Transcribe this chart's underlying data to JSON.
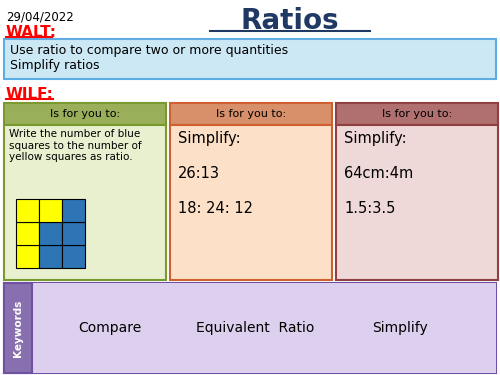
{
  "title": "Ratios",
  "date": "29/04/2022",
  "walt_label": "WALT:",
  "walt_text": "Use ratio to compare two or more quantities\nSimplify ratios",
  "wilf_label": "WILF:",
  "box1_header": "Is for you to:",
  "box1_text": "Write the number of blue\nsquares to the number of\nyellow squares as ratio.",
  "box2_text": "Simplify:\n\n26:13\n\n18: 24: 12",
  "box3_text": "Simplify:\n\n64cm:4m\n\n1.5:3.5",
  "box_header": "Is for you to:",
  "keywords": [
    "Compare",
    "Equivalent  Ratio",
    "Simplify"
  ],
  "bg_color": "#ffffff",
  "title_color": "#1f3864",
  "walt_color": "#ff0000",
  "wilf_color": "#ff0000",
  "walt_bg": "#cce8f4",
  "walt_border": "#5dade2",
  "box1_header_bg": "#9aaf5a",
  "box1_body_bg": "#e8f0d0",
  "box1_border": "#7a9a30",
  "box2_header_bg": "#d8906a",
  "box2_body_bg": "#fce0c8",
  "box2_border": "#d06030",
  "box3_header_bg": "#b07070",
  "box3_body_bg": "#eed8d8",
  "box3_border": "#904040",
  "keywords_bg": "#ddd0ee",
  "keywords_tab_bg": "#8870b0",
  "keywords_border": "#7050a0",
  "yellow_color": "#ffff00",
  "blue_color": "#2e75b6",
  "kw_text_color": "#000000"
}
